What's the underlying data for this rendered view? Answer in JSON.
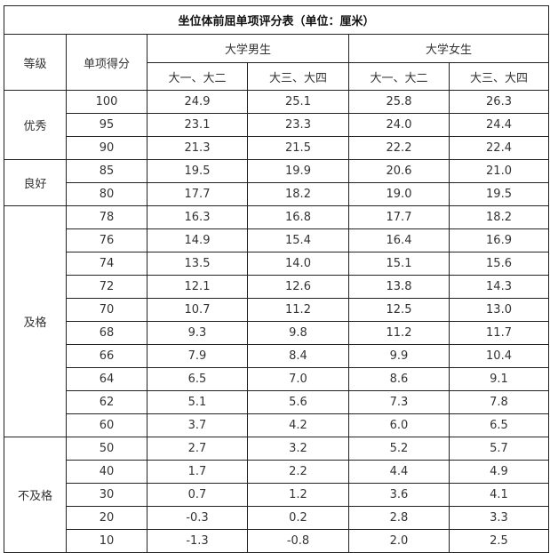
{
  "title": "坐位体前屈单项评分表（单位：厘米）",
  "headers": {
    "grade": "等级",
    "score": "单项得分",
    "male": "大学男生",
    "female": "大学女生",
    "sub": [
      "大一、大二",
      "大三、大四",
      "大一、大二",
      "大三、大四"
    ]
  },
  "groups": [
    {
      "grade": "优秀",
      "rows": [
        {
          "score": "100",
          "values": [
            "24.9",
            "25.1",
            "25.8",
            "26.3"
          ]
        },
        {
          "score": "95",
          "values": [
            "23.1",
            "23.3",
            "24.0",
            "24.4"
          ]
        },
        {
          "score": "90",
          "values": [
            "21.3",
            "21.5",
            "22.2",
            "22.4"
          ]
        }
      ]
    },
    {
      "grade": "良好",
      "rows": [
        {
          "score": "85",
          "values": [
            "19.5",
            "19.9",
            "20.6",
            "21.0"
          ]
        },
        {
          "score": "80",
          "values": [
            "17.7",
            "18.2",
            "19.0",
            "19.5"
          ]
        }
      ]
    },
    {
      "grade": "及格",
      "rows": [
        {
          "score": "78",
          "values": [
            "16.3",
            "16.8",
            "17.7",
            "18.2"
          ]
        },
        {
          "score": "76",
          "values": [
            "14.9",
            "15.4",
            "16.4",
            "16.9"
          ]
        },
        {
          "score": "74",
          "values": [
            "13.5",
            "14.0",
            "15.1",
            "15.6"
          ]
        },
        {
          "score": "72",
          "values": [
            "12.1",
            "12.6",
            "13.8",
            "14.3"
          ]
        },
        {
          "score": "70",
          "values": [
            "10.7",
            "11.2",
            "12.5",
            "13.0"
          ]
        },
        {
          "score": "68",
          "values": [
            "9.3",
            "9.8",
            "11.2",
            "11.7"
          ]
        },
        {
          "score": "66",
          "values": [
            "7.9",
            "8.4",
            "9.9",
            "10.4"
          ]
        },
        {
          "score": "64",
          "values": [
            "6.5",
            "7.0",
            "8.6",
            "9.1"
          ]
        },
        {
          "score": "62",
          "values": [
            "5.1",
            "5.6",
            "7.3",
            "7.8"
          ]
        },
        {
          "score": "60",
          "values": [
            "3.7",
            "4.2",
            "6.0",
            "6.5"
          ]
        }
      ]
    },
    {
      "grade": "不及格",
      "rows": [
        {
          "score": "50",
          "values": [
            "2.7",
            "3.2",
            "5.2",
            "5.7"
          ]
        },
        {
          "score": "40",
          "values": [
            "1.7",
            "2.2",
            "4.4",
            "4.9"
          ]
        },
        {
          "score": "30",
          "values": [
            "0.7",
            "1.2",
            "3.6",
            "4.1"
          ]
        },
        {
          "score": "20",
          "values": [
            "-0.3",
            "0.2",
            "2.8",
            "3.3"
          ]
        },
        {
          "score": "10",
          "values": [
            "-1.3",
            "-0.8",
            "2.0",
            "2.5"
          ]
        }
      ]
    }
  ]
}
